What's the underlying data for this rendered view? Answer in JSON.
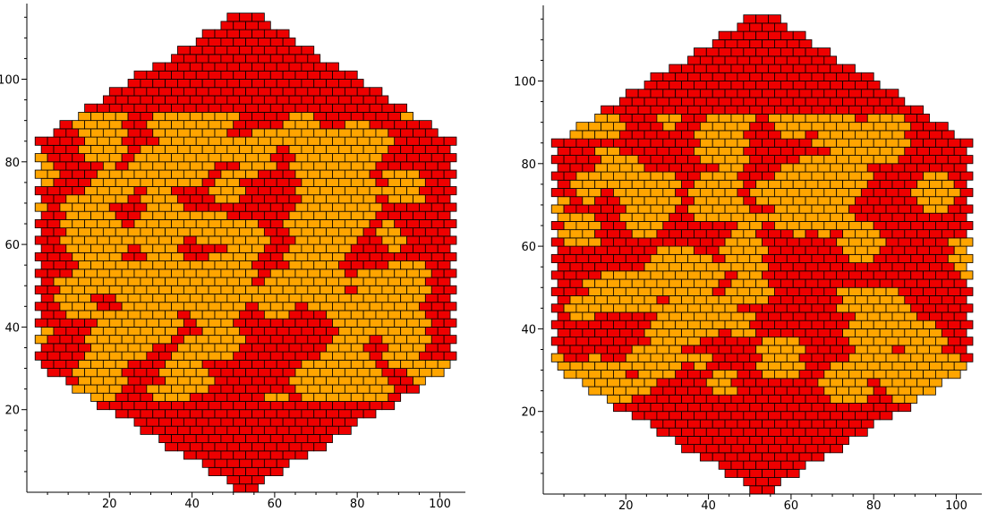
{
  "chart_data": [
    {
      "type": "heatmap",
      "title": "",
      "xlabel": "",
      "ylabel": "",
      "xlim": [
        0,
        104
      ],
      "ylim": [
        0,
        117
      ],
      "x_ticks": [
        "20",
        "40",
        "60",
        "80",
        "100"
      ],
      "y_ticks": [
        "20",
        "40",
        "60",
        "80",
        "100"
      ],
      "grid": false,
      "cell_colors": {
        "red": "#ee0000",
        "orange": "#ffa500",
        "outline": "#000000"
      },
      "outline_shape": "hexagon",
      "orange_fraction": 0.27
    },
    {
      "type": "heatmap",
      "title": "",
      "xlabel": "",
      "ylabel": "",
      "xlim": [
        0,
        104
      ],
      "ylim": [
        0,
        117
      ],
      "x_ticks": [
        "20",
        "40",
        "60",
        "80",
        "100"
      ],
      "y_ticks": [
        "20",
        "40",
        "60",
        "80",
        "100"
      ],
      "grid": false,
      "cell_colors": {
        "red": "#ee0000",
        "orange": "#ffa500",
        "outline": "#000000"
      },
      "outline_shape": "hexagon",
      "orange_fraction": 0.22
    }
  ]
}
